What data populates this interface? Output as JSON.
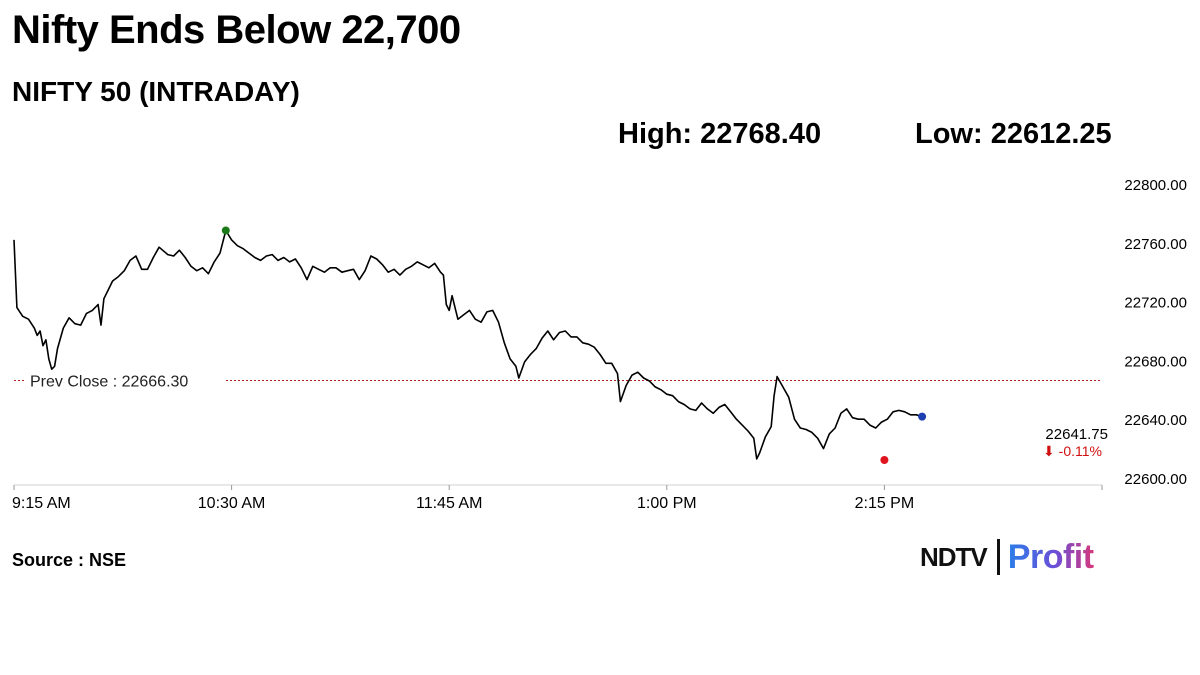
{
  "header": {
    "headline": "Nifty Ends Below 22,700",
    "subtitle": "NIFTY 50 (INTRADAY)",
    "high_text": "High: 22768.40",
    "low_text": "Low: 22612.25"
  },
  "footer": {
    "source": "Source : NSE",
    "brand_ndtv": "NDTV",
    "brand_profit": "Profit"
  },
  "colors": {
    "line": "#000000",
    "high_marker": "#1a7a1a",
    "low_marker": "#e0141e",
    "last_marker": "#1f3fb0",
    "prev_close_line": "#b02020",
    "change_text": "#d01010",
    "axis": "#d0d0d0"
  },
  "chart_data": {
    "type": "line",
    "x_labels": [
      "9:15 AM",
      "10:30 AM",
      "11:45 AM",
      "1:00 PM",
      "2:15 PM"
    ],
    "x_range": [
      "9:15 AM",
      "3:30 PM"
    ],
    "ylim": [
      22600,
      22800
    ],
    "yticks": [
      "22600.00",
      "22640.00",
      "22680.00",
      "22720.00",
      "22760.00",
      "22800.00"
    ],
    "prev_close": {
      "label": "Prev Close : 22666.30",
      "value": 22666.3
    },
    "last": {
      "value_text": "22641.75",
      "change_text": "⬇ -0.11%",
      "value": 22641.75
    },
    "high": {
      "time_minutes": 73,
      "value": 22768.4
    },
    "low": {
      "time_minutes": 300,
      "value": 22612.25
    },
    "series": [
      {
        "points": [
          [
            0,
            22762
          ],
          [
            1,
            22716
          ],
          [
            2,
            22713
          ],
          [
            3,
            22710
          ],
          [
            5,
            22708
          ],
          [
            7,
            22702
          ],
          [
            8,
            22697
          ],
          [
            9,
            22700
          ],
          [
            10,
            22690
          ],
          [
            11,
            22694
          ],
          [
            12,
            22681
          ],
          [
            13,
            22674
          ],
          [
            14,
            22676
          ],
          [
            15,
            22688
          ],
          [
            17,
            22702
          ],
          [
            19,
            22709
          ],
          [
            21,
            22705
          ],
          [
            23,
            22704
          ],
          [
            25,
            22712
          ],
          [
            27,
            22714
          ],
          [
            29,
            22718
          ],
          [
            30,
            22704
          ],
          [
            31,
            22722
          ],
          [
            34,
            22734
          ],
          [
            36,
            22737
          ],
          [
            38,
            22741
          ],
          [
            40,
            22748
          ],
          [
            42,
            22751
          ],
          [
            44,
            22742
          ],
          [
            46,
            22742
          ],
          [
            48,
            22750
          ],
          [
            50,
            22757
          ],
          [
            53,
            22752
          ],
          [
            55,
            22751
          ],
          [
            57,
            22755
          ],
          [
            59,
            22750
          ],
          [
            61,
            22744
          ],
          [
            63,
            22741
          ],
          [
            65,
            22743
          ],
          [
            67,
            22739
          ],
          [
            69,
            22747
          ],
          [
            71,
            22753
          ],
          [
            73,
            22768.4
          ],
          [
            75,
            22762
          ],
          [
            77,
            22758
          ],
          [
            79,
            22756
          ],
          [
            81,
            22753
          ],
          [
            83,
            22750
          ],
          [
            85,
            22748
          ],
          [
            87,
            22751
          ],
          [
            89,
            22752
          ],
          [
            91,
            22748
          ],
          [
            93,
            22750
          ],
          [
            95,
            22747
          ],
          [
            97,
            22749
          ],
          [
            99,
            22743
          ],
          [
            101,
            22735
          ],
          [
            103,
            22744
          ],
          [
            105,
            22742
          ],
          [
            107,
            22740
          ],
          [
            109,
            22743
          ],
          [
            111,
            22743
          ],
          [
            113,
            22740
          ],
          [
            115,
            22741
          ],
          [
            117,
            22742
          ],
          [
            119,
            22735
          ],
          [
            121,
            22741
          ],
          [
            123,
            22751
          ],
          [
            125,
            22749
          ],
          [
            127,
            22745
          ],
          [
            129,
            22740
          ],
          [
            131,
            22742
          ],
          [
            133,
            22738
          ],
          [
            135,
            22742
          ],
          [
            137,
            22744
          ],
          [
            139,
            22747
          ],
          [
            141,
            22745
          ],
          [
            143,
            22743
          ],
          [
            145,
            22746
          ],
          [
            147,
            22740
          ],
          [
            148,
            22738
          ],
          [
            149,
            22718
          ],
          [
            150,
            22714
          ],
          [
            151,
            22724
          ],
          [
            153,
            22708
          ],
          [
            155,
            22711
          ],
          [
            157,
            22714
          ],
          [
            159,
            22708
          ],
          [
            161,
            22706
          ],
          [
            163,
            22713
          ],
          [
            165,
            22714
          ],
          [
            167,
            22706
          ],
          [
            169,
            22692
          ],
          [
            171,
            22681
          ],
          [
            173,
            22676
          ],
          [
            174,
            22668
          ],
          [
            176,
            22679
          ],
          [
            178,
            22684
          ],
          [
            180,
            22688
          ],
          [
            182,
            22695
          ],
          [
            184,
            22700
          ],
          [
            186,
            22694
          ],
          [
            188,
            22699
          ],
          [
            190,
            22700
          ],
          [
            192,
            22696
          ],
          [
            194,
            22696
          ],
          [
            196,
            22692
          ],
          [
            198,
            22691
          ],
          [
            200,
            22689
          ],
          [
            202,
            22684
          ],
          [
            204,
            22678
          ],
          [
            206,
            22678
          ],
          [
            208,
            22671
          ],
          [
            209,
            22652
          ],
          [
            211,
            22663
          ],
          [
            213,
            22670
          ],
          [
            215,
            22672
          ],
          [
            217,
            22668
          ],
          [
            219,
            22666
          ],
          [
            221,
            22662
          ],
          [
            223,
            22660
          ],
          [
            225,
            22657
          ],
          [
            227,
            22656
          ],
          [
            229,
            22652
          ],
          [
            231,
            22650
          ],
          [
            233,
            22647
          ],
          [
            235,
            22646
          ],
          [
            237,
            22651
          ],
          [
            239,
            22647
          ],
          [
            241,
            22644
          ],
          [
            243,
            22648
          ],
          [
            245,
            22650
          ],
          [
            247,
            22645
          ],
          [
            249,
            22640
          ],
          [
            251,
            22636
          ],
          [
            253,
            22632
          ],
          [
            255,
            22627
          ],
          [
            256,
            22613
          ],
          [
            257,
            22617
          ],
          [
            259,
            22628
          ],
          [
            261,
            22635
          ],
          [
            262,
            22656
          ],
          [
            263,
            22669
          ],
          [
            265,
            22662
          ],
          [
            267,
            22655
          ],
          [
            269,
            22640
          ],
          [
            271,
            22634
          ],
          [
            273,
            22633
          ],
          [
            275,
            22631
          ],
          [
            277,
            22627
          ],
          [
            279,
            22620
          ],
          [
            281,
            22630
          ],
          [
            283,
            22634
          ],
          [
            285,
            22644
          ],
          [
            287,
            22647
          ],
          [
            289,
            22641
          ],
          [
            291,
            22640
          ],
          [
            293,
            22640
          ],
          [
            295,
            22636
          ],
          [
            297,
            22634
          ],
          [
            299,
            22638
          ],
          [
            301,
            22640
          ],
          [
            303,
            22645
          ],
          [
            305,
            22646
          ],
          [
            307,
            22645
          ],
          [
            309,
            22643
          ],
          [
            311,
            22643
          ],
          [
            313,
            22641.75
          ]
        ]
      }
    ]
  }
}
